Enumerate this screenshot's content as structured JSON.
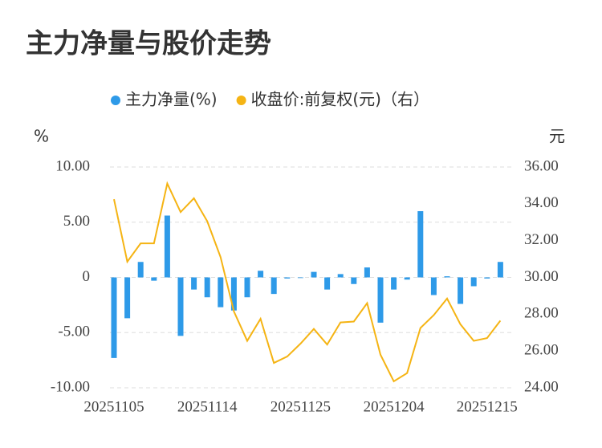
{
  "chart_data": {
    "type": "bar-line",
    "title": "主力净量与股价走势",
    "y_label": "%",
    "y2_label": "元",
    "categories": [
      "20251105",
      null,
      null,
      null,
      null,
      null,
      null,
      "20251114",
      null,
      null,
      null,
      null,
      null,
      null,
      "20251125",
      null,
      null,
      null,
      null,
      null,
      null,
      "20251204",
      null,
      null,
      null,
      null,
      null,
      null,
      "20251215",
      null
    ],
    "series": [
      {
        "name": "主力净量(%)",
        "type": "bar",
        "color": "#2e9ae8",
        "values": [
          -7.3,
          -3.7,
          1.4,
          -0.3,
          5.6,
          -5.3,
          -1.1,
          -1.8,
          -2.7,
          -3.0,
          -1.8,
          0.6,
          -1.5,
          -0.1,
          0,
          0.5,
          -1.1,
          0.3,
          -0.6,
          0.9,
          -4.1,
          -1.1,
          -0.2,
          6.0,
          -1.6,
          0.1,
          -2.4,
          -0.8,
          -0.1,
          1.4
        ]
      },
      {
        "name": "收盘价:前复权(元)（右）",
        "type": "line",
        "axis": "y2",
        "color": "#f5b414",
        "values": [
          34.25,
          30.85,
          31.85,
          31.85,
          35.1,
          33.55,
          34.3,
          33.05,
          31.1,
          28.15,
          26.55,
          27.75,
          25.35,
          25.7,
          26.4,
          27.2,
          26.35,
          27.55,
          27.6,
          28.6,
          25.8,
          24.35,
          24.8,
          27.25,
          27.95,
          28.85,
          27.45,
          26.55,
          26.7,
          27.65
        ]
      }
    ],
    "ylim": [
      -10,
      10
    ],
    "yticks": [
      {
        "value": 10,
        "label": "10.00"
      },
      {
        "value": 5,
        "label": "5.00"
      },
      0,
      {
        "value": -5,
        "label": "-5.00"
      },
      {
        "value": -10,
        "label": "-10.00"
      }
    ],
    "y2lim": [
      24,
      36
    ],
    "y2ticks": [
      {
        "value": 36,
        "label": "36.00"
      },
      {
        "value": 34,
        "label": "34.00"
      },
      {
        "value": 32,
        "label": "32.00"
      },
      {
        "value": 30,
        "label": "30.00"
      },
      {
        "value": 28,
        "label": "28.00"
      },
      {
        "value": 26,
        "label": "26.00"
      },
      {
        "value": 24,
        "label": "24.00"
      }
    ],
    "grid": true
  }
}
